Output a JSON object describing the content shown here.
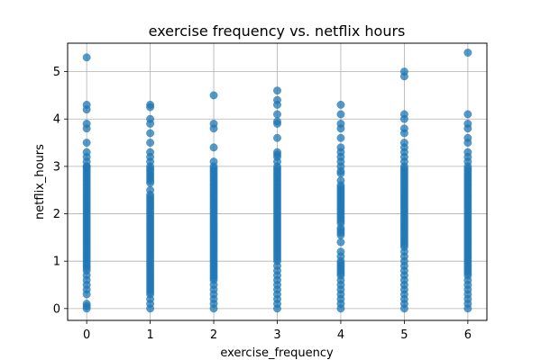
{
  "chart_data": {
    "type": "scatter",
    "title": "exercise frequency vs. netflix hours",
    "xlabel": "exercise_frequency",
    "ylabel": "netflix_hours",
    "xlim": [
      -0.3,
      6.3
    ],
    "ylim": [
      -0.25,
      5.6
    ],
    "xticks": [
      0,
      1,
      2,
      3,
      4,
      5,
      6
    ],
    "yticks": [
      0,
      1,
      2,
      3,
      4,
      5
    ],
    "grid": true,
    "point_color": "#1f77b4",
    "point_alpha": 0.75,
    "series": [
      {
        "x": [
          0,
          0,
          0,
          0,
          0,
          0,
          0,
          0,
          0,
          0,
          0,
          0,
          0,
          0,
          0,
          0,
          0,
          0,
          0,
          0,
          0,
          0,
          0,
          0,
          0,
          0,
          0,
          0,
          0,
          0,
          0,
          0,
          0,
          0,
          0,
          0,
          0,
          0,
          0,
          0,
          0,
          0,
          0,
          0,
          0,
          0,
          0,
          0,
          0,
          0,
          0,
          0,
          0,
          0,
          0,
          0,
          0,
          0,
          0,
          0,
          0,
          0,
          0,
          1,
          1,
          1,
          1,
          1,
          1,
          1,
          1,
          1,
          1,
          1,
          1,
          1,
          1,
          1,
          1,
          1,
          1,
          1,
          1,
          1,
          1,
          1,
          1,
          1,
          1,
          1,
          1,
          1,
          1,
          1,
          1,
          1,
          1,
          1,
          1,
          1,
          1,
          1,
          1,
          1,
          1,
          1,
          1,
          1,
          1,
          1,
          1,
          1,
          1,
          1,
          1,
          1,
          1,
          1,
          1,
          1,
          1,
          1,
          1,
          1,
          1,
          1,
          1,
          2,
          2,
          2,
          2,
          2,
          2,
          2,
          2,
          2,
          2,
          2,
          2,
          2,
          2,
          2,
          2,
          2,
          2,
          2,
          2,
          2,
          2,
          2,
          2,
          2,
          2,
          2,
          2,
          2,
          2,
          2,
          2,
          2,
          2,
          2,
          2,
          2,
          2,
          2,
          2,
          2,
          2,
          2,
          2,
          2,
          2,
          2,
          2,
          2,
          2,
          2,
          2,
          2,
          2,
          2,
          2,
          2,
          2,
          2,
          2,
          3,
          3,
          3,
          3,
          3,
          3,
          3,
          3,
          3,
          3,
          3,
          3,
          3,
          3,
          3,
          3,
          3,
          3,
          3,
          3,
          3,
          3,
          3,
          3,
          3,
          3,
          3,
          3,
          3,
          3,
          3,
          3,
          3,
          3,
          3,
          3,
          3,
          3,
          3,
          3,
          3,
          3,
          3,
          3,
          3,
          3,
          3,
          3,
          3,
          3,
          3,
          3,
          3,
          3,
          3,
          3,
          3,
          3,
          3,
          3,
          3,
          3,
          4,
          4,
          4,
          4,
          4,
          4,
          4,
          4,
          4,
          4,
          4,
          4,
          4,
          4,
          4,
          4,
          4,
          4,
          4,
          4,
          4,
          4,
          4,
          4,
          4,
          4,
          4,
          4,
          4,
          4,
          4,
          4,
          4,
          4,
          4,
          4,
          4,
          4,
          4,
          4,
          4,
          4,
          4,
          4,
          4,
          4,
          4,
          4,
          4,
          4,
          4,
          5,
          5,
          5,
          5,
          5,
          5,
          5,
          5,
          5,
          5,
          5,
          5,
          5,
          5,
          5,
          5,
          5,
          5,
          5,
          5,
          5,
          5,
          5,
          5,
          5,
          5,
          5,
          5,
          5,
          5,
          5,
          5,
          5,
          5,
          5,
          5,
          5,
          5,
          5,
          5,
          5,
          5,
          5,
          5,
          5,
          5,
          5,
          5,
          5,
          5,
          5,
          5,
          5,
          5,
          5,
          5,
          5,
          5,
          5,
          6,
          6,
          6,
          6,
          6,
          6,
          6,
          6,
          6,
          6,
          6,
          6,
          6,
          6,
          6,
          6,
          6,
          6,
          6,
          6,
          6,
          6,
          6,
          6,
          6,
          6,
          6,
          6,
          6,
          6,
          6,
          6,
          6,
          6,
          6,
          6,
          6,
          6,
          6,
          6,
          6,
          6,
          6,
          6,
          6,
          6,
          6,
          6,
          6,
          6,
          6,
          6,
          6,
          6,
          6,
          6,
          6,
          6,
          6,
          6,
          6,
          6,
          6
        ],
        "y": [
          5.3,
          4.3,
          4.2,
          3.9,
          3.8,
          3.5,
          3.3,
          3.2,
          3.1,
          3.0,
          2.9,
          2.8,
          2.7,
          2.6,
          2.5,
          2.4,
          2.3,
          2.2,
          2.1,
          2.0,
          1.9,
          1.8,
          1.7,
          1.6,
          1.5,
          1.4,
          1.3,
          1.2,
          1.1,
          1.0,
          0.9,
          0.8,
          0.7,
          0.6,
          0.5,
          0.4,
          0.3,
          0.1,
          0.05,
          0.0,
          3.0,
          2.95,
          2.85,
          2.75,
          2.65,
          2.55,
          2.45,
          2.35,
          2.25,
          2.15,
          2.05,
          1.95,
          1.85,
          1.75,
          1.65,
          1.55,
          1.45,
          1.35,
          1.25,
          1.15,
          1.05,
          0.95,
          0.85,
          4.3,
          4.25,
          4.0,
          3.9,
          3.7,
          3.5,
          3.3,
          3.2,
          3.1,
          3.0,
          2.9,
          2.8,
          2.7,
          2.5,
          2.4,
          2.3,
          2.2,
          2.1,
          2.0,
          1.9,
          1.8,
          1.7,
          1.6,
          1.5,
          1.4,
          1.3,
          1.2,
          1.1,
          1.0,
          0.9,
          0.8,
          0.7,
          0.6,
          0.5,
          0.4,
          0.3,
          0.2,
          0.1,
          0.0,
          2.95,
          2.85,
          2.75,
          2.65,
          2.35,
          2.25,
          2.15,
          2.05,
          1.95,
          1.85,
          1.75,
          1.65,
          1.55,
          1.45,
          1.35,
          1.25,
          1.15,
          1.05,
          0.95,
          0.85,
          0.75,
          0.65,
          0.55,
          0.45,
          0.35,
          4.5,
          3.9,
          3.8,
          3.4,
          3.1,
          3.0,
          2.9,
          2.8,
          2.7,
          2.6,
          2.5,
          2.4,
          2.3,
          2.2,
          2.1,
          2.0,
          1.9,
          1.8,
          1.7,
          1.6,
          1.5,
          1.4,
          1.3,
          1.2,
          1.1,
          1.0,
          0.9,
          0.8,
          0.7,
          0.6,
          0.5,
          0.4,
          0.3,
          0.2,
          0.1,
          0.0,
          2.95,
          2.85,
          2.75,
          2.65,
          2.55,
          2.45,
          2.35,
          2.25,
          2.15,
          2.05,
          1.95,
          1.85,
          1.75,
          1.65,
          1.55,
          1.45,
          1.35,
          1.25,
          1.15,
          1.05,
          0.95,
          0.85,
          0.75,
          0.65,
          4.6,
          4.4,
          4.3,
          4.1,
          3.9,
          3.6,
          3.3,
          3.2,
          3.1,
          3.0,
          2.9,
          2.8,
          2.7,
          2.6,
          2.5,
          2.4,
          2.3,
          2.2,
          2.1,
          2.0,
          1.9,
          1.8,
          1.7,
          1.6,
          1.5,
          1.4,
          1.3,
          1.2,
          1.1,
          1.0,
          0.9,
          0.8,
          0.7,
          0.6,
          0.5,
          0.4,
          0.3,
          0.2,
          0.1,
          0.0,
          3.95,
          3.25,
          2.95,
          2.85,
          2.75,
          2.65,
          2.55,
          2.45,
          2.35,
          2.25,
          2.15,
          2.05,
          1.95,
          1.85,
          1.75,
          1.65,
          1.55,
          1.45,
          1.35,
          1.25,
          1.15,
          1.05,
          4.3,
          4.1,
          3.9,
          3.8,
          3.6,
          3.4,
          3.3,
          3.2,
          3.1,
          3.0,
          2.9,
          2.7,
          2.6,
          2.5,
          2.4,
          2.3,
          2.2,
          2.1,
          2.0,
          1.9,
          1.8,
          1.7,
          1.6,
          1.4,
          1.2,
          1.1,
          1.0,
          0.9,
          0.8,
          0.7,
          0.6,
          0.5,
          0.4,
          0.3,
          0.2,
          0.1,
          0.0,
          2.85,
          2.55,
          2.45,
          2.35,
          2.25,
          2.15,
          2.05,
          1.95,
          1.85,
          1.65,
          1.55,
          0.95,
          0.85,
          0.75,
          5.0,
          4.9,
          4.1,
          4.0,
          3.8,
          3.7,
          3.5,
          3.4,
          3.3,
          3.2,
          3.1,
          3.0,
          2.9,
          2.8,
          2.7,
          2.6,
          2.5,
          2.4,
          2.3,
          2.2,
          2.1,
          2.0,
          1.9,
          1.8,
          1.7,
          1.6,
          1.5,
          1.4,
          1.3,
          1.2,
          1.1,
          1.0,
          0.9,
          0.8,
          0.7,
          0.6,
          0.5,
          0.4,
          0.3,
          0.2,
          0.1,
          0.0,
          2.95,
          2.85,
          2.75,
          2.65,
          2.55,
          2.45,
          2.35,
          2.25,
          2.15,
          2.05,
          1.95,
          1.85,
          1.75,
          1.65,
          1.55,
          1.45,
          1.35,
          5.4,
          4.1,
          3.9,
          3.8,
          3.6,
          3.5,
          3.3,
          3.2,
          3.1,
          3.0,
          2.9,
          2.8,
          2.7,
          2.6,
          2.5,
          2.4,
          2.3,
          2.2,
          2.1,
          2.0,
          1.9,
          1.8,
          1.7,
          1.6,
          1.5,
          1.4,
          1.3,
          1.2,
          1.1,
          1.0,
          0.9,
          0.8,
          0.7,
          0.6,
          0.5,
          0.4,
          0.3,
          0.2,
          0.1,
          0.0,
          2.95,
          2.85,
          2.75,
          2.65,
          2.55,
          2.45,
          2.35,
          2.25,
          2.15,
          2.05,
          1.95,
          1.85,
          1.75,
          1.65,
          1.55,
          1.45,
          1.35,
          1.25,
          1.15,
          1.05,
          0.95,
          0.85,
          0.75
        ]
      }
    ]
  }
}
